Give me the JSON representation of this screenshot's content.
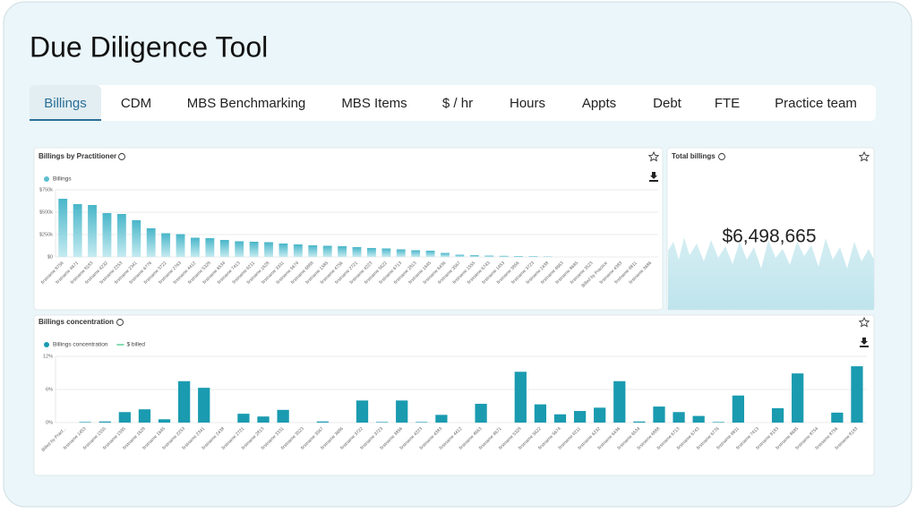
{
  "header": {
    "title": "Due Diligence Tool"
  },
  "tabs": [
    "Billings",
    "CDM",
    "MBS Benchmarking",
    "MBS Items",
    "$ / hr",
    "Hours",
    "Appts",
    "Debt",
    "FTE",
    "Practice team"
  ],
  "active_tab": "Billings",
  "total_billings": {
    "title": "Total billings",
    "value": "$6,498,665"
  },
  "chart_data": [
    {
      "type": "bar",
      "title": "Billings by Practitioner",
      "categories": [
        "firstname 8756",
        "firstname 4671",
        "firstname 8183",
        "firstname 4232",
        "firstname 2253",
        "firstname 2341",
        "firstname 6776",
        "firstname 3722",
        "firstname 2763",
        "firstname 4412",
        "firstname 5328",
        "firstname 6534",
        "firstname 7413",
        "firstname 6211",
        "firstname 1628",
        "firstname 3331",
        "firstname 5674",
        "firstname 6888",
        "firstname 1585",
        "firstname 4756",
        "firstname 2721",
        "firstname 4223",
        "firstname 5622",
        "firstname 6713",
        "firstname 2813",
        "firstname 1645",
        "firstname 6436",
        "firstname 3567",
        "firstname 1555",
        "firstname 6743",
        "firstname 1453",
        "firstname 3856",
        "firstname 3723",
        "firstname 2438",
        "firstname 4663",
        "firstname 8685",
        "firstname 3523",
        "Billed by Practice",
        "firstname 4383",
        "firstname 6811",
        "firstname 3686"
      ],
      "series": [
        {
          "name": "Billings",
          "color": "#5bbfd0",
          "values": [
            650000,
            590000,
            580000,
            490000,
            480000,
            410000,
            320000,
            265000,
            255000,
            215000,
            210000,
            190000,
            175000,
            170000,
            165000,
            150000,
            140000,
            130000,
            125000,
            120000,
            110000,
            100000,
            95000,
            85000,
            75000,
            70000,
            45000,
            25000,
            20000,
            15000,
            12000,
            10000,
            8000,
            5000,
            0,
            0,
            0,
            0,
            0,
            0,
            0
          ]
        }
      ],
      "ylim": [
        0,
        750000
      ],
      "yticks": [
        {
          "value": 0,
          "label": "$0"
        },
        {
          "value": 250000,
          "label": "$250k"
        },
        {
          "value": 500000,
          "label": "$500k"
        },
        {
          "value": 750000,
          "label": "$750k"
        }
      ],
      "grid": true
    },
    {
      "type": "bar",
      "title": "Billings concentration",
      "categories": [
        "Billed by Pract...",
        "firstname 1453",
        "firstname 1555",
        "firstname 1585",
        "firstname 1628",
        "firstname 1645",
        "firstname 2253",
        "firstname 2341",
        "firstname 2438",
        "firstname 2721",
        "firstname 2813",
        "firstname 3331",
        "firstname 3523",
        "firstname 3567",
        "firstname 3686",
        "firstname 3722",
        "firstname 3723",
        "firstname 3856",
        "firstname 4223",
        "firstname 4383",
        "firstname 4412",
        "firstname 4663",
        "firstname 4671",
        "firstname 5328",
        "firstname 5622",
        "firstname 5674",
        "firstname 6211",
        "firstname 6232",
        "firstname 6436",
        "firstname 6534",
        "firstname 6888",
        "firstname 6713",
        "firstname 6743",
        "firstname 6776",
        "firstname 6811",
        "firstname 7413",
        "firstname 8183",
        "firstname 8685",
        "firstname 8754",
        "firstname 8756",
        "firstname 8183"
      ],
      "series": [
        {
          "name": "Billings concentration",
          "color": "#1a9bb0",
          "values": [
            0,
            0.1,
            0.2,
            1.9,
            2.4,
            0.6,
            7.5,
            6.3,
            0,
            1.6,
            1.1,
            2.3,
            0,
            0.2,
            0,
            4.0,
            0.1,
            4.0,
            0.1,
            1.4,
            0,
            3.4,
            0,
            9.2,
            3.3,
            1.5,
            2.1,
            2.7,
            7.5,
            0.2,
            2.9,
            1.9,
            1.2,
            0.1,
            4.9,
            0,
            2.6,
            8.9,
            0,
            1.8,
            10.2
          ]
        },
        {
          "name": "$ billed",
          "color": "#5ccf9a",
          "values": [
            null,
            null,
            null,
            null,
            null,
            null,
            null,
            null,
            null,
            null,
            null,
            null,
            null,
            null,
            null,
            null,
            null,
            null,
            null,
            null,
            null,
            null,
            null,
            null,
            null,
            null,
            null,
            null,
            null,
            null,
            null,
            null,
            null,
            null,
            null,
            null,
            null,
            null,
            null,
            null,
            null
          ]
        }
      ],
      "ylim": [
        0,
        12
      ],
      "yticks": [
        {
          "value": 0,
          "label": "0%"
        },
        {
          "value": 6,
          "label": "6%"
        },
        {
          "value": 12,
          "label": "12%"
        }
      ],
      "grid": true
    }
  ]
}
